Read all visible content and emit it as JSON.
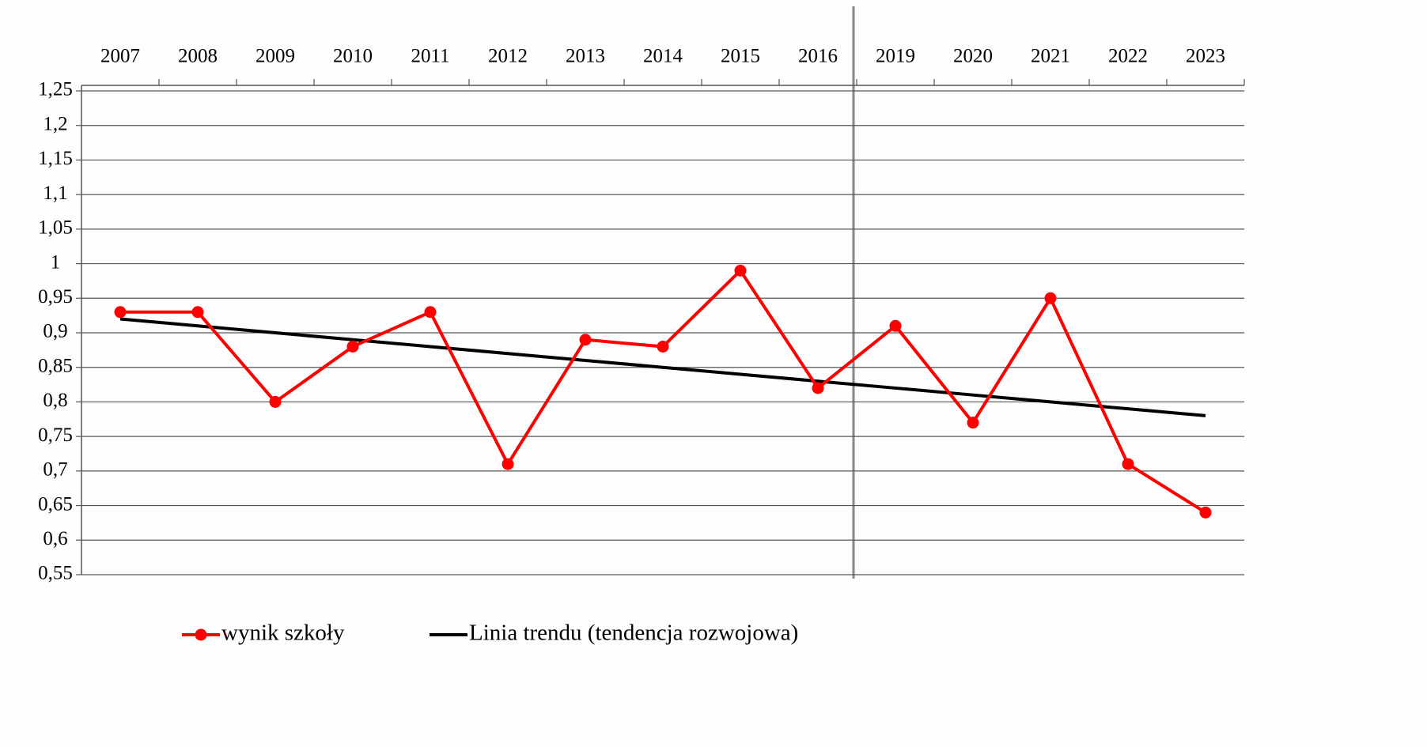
{
  "chart_data": {
    "type": "line",
    "categories": [
      "2007",
      "2008",
      "2009",
      "2010",
      "2011",
      "2012",
      "2013",
      "2014",
      "2015",
      "2016",
      "2019",
      "2020",
      "2021",
      "2022",
      "2023"
    ],
    "series": [
      {
        "name": "wynik szkoły",
        "color": "#ff0000",
        "markers": true,
        "values": [
          0.93,
          0.93,
          0.8,
          0.88,
          0.93,
          0.71,
          0.89,
          0.88,
          0.99,
          0.82,
          0.91,
          0.77,
          0.95,
          0.71,
          0.64
        ]
      },
      {
        "name": "Linia trendu (tendencja rozwojowa)",
        "color": "#000000",
        "markers": false,
        "values": [
          0.92,
          0.91,
          0.9,
          0.89,
          0.88,
          0.87,
          0.86,
          0.85,
          0.84,
          0.83,
          0.82,
          0.81,
          0.8,
          0.79,
          0.78
        ]
      }
    ],
    "ylim": [
      0.55,
      1.25
    ],
    "yticks": [
      {
        "value": 0.55,
        "label": "0,55"
      },
      {
        "value": 0.6,
        "label": "0,6"
      },
      {
        "value": 0.65,
        "label": "0,65"
      },
      {
        "value": 0.7,
        "label": "0,7"
      },
      {
        "value": 0.75,
        "label": "0,75"
      },
      {
        "value": 0.8,
        "label": "0,8"
      },
      {
        "value": 0.85,
        "label": "0,85"
      },
      {
        "value": 0.9,
        "label": "0,9"
      },
      {
        "value": 0.95,
        "label": "0,95"
      },
      1,
      {
        "value": 1.05,
        "label": "1,05"
      },
      {
        "value": 1.1,
        "label": "1,1"
      },
      {
        "value": 1.15,
        "label": "1,15"
      },
      {
        "value": 1.2,
        "label": "1,2"
      },
      {
        "value": 1.25,
        "label": "1,25"
      }
    ],
    "grid": true,
    "legend": "bottom"
  }
}
